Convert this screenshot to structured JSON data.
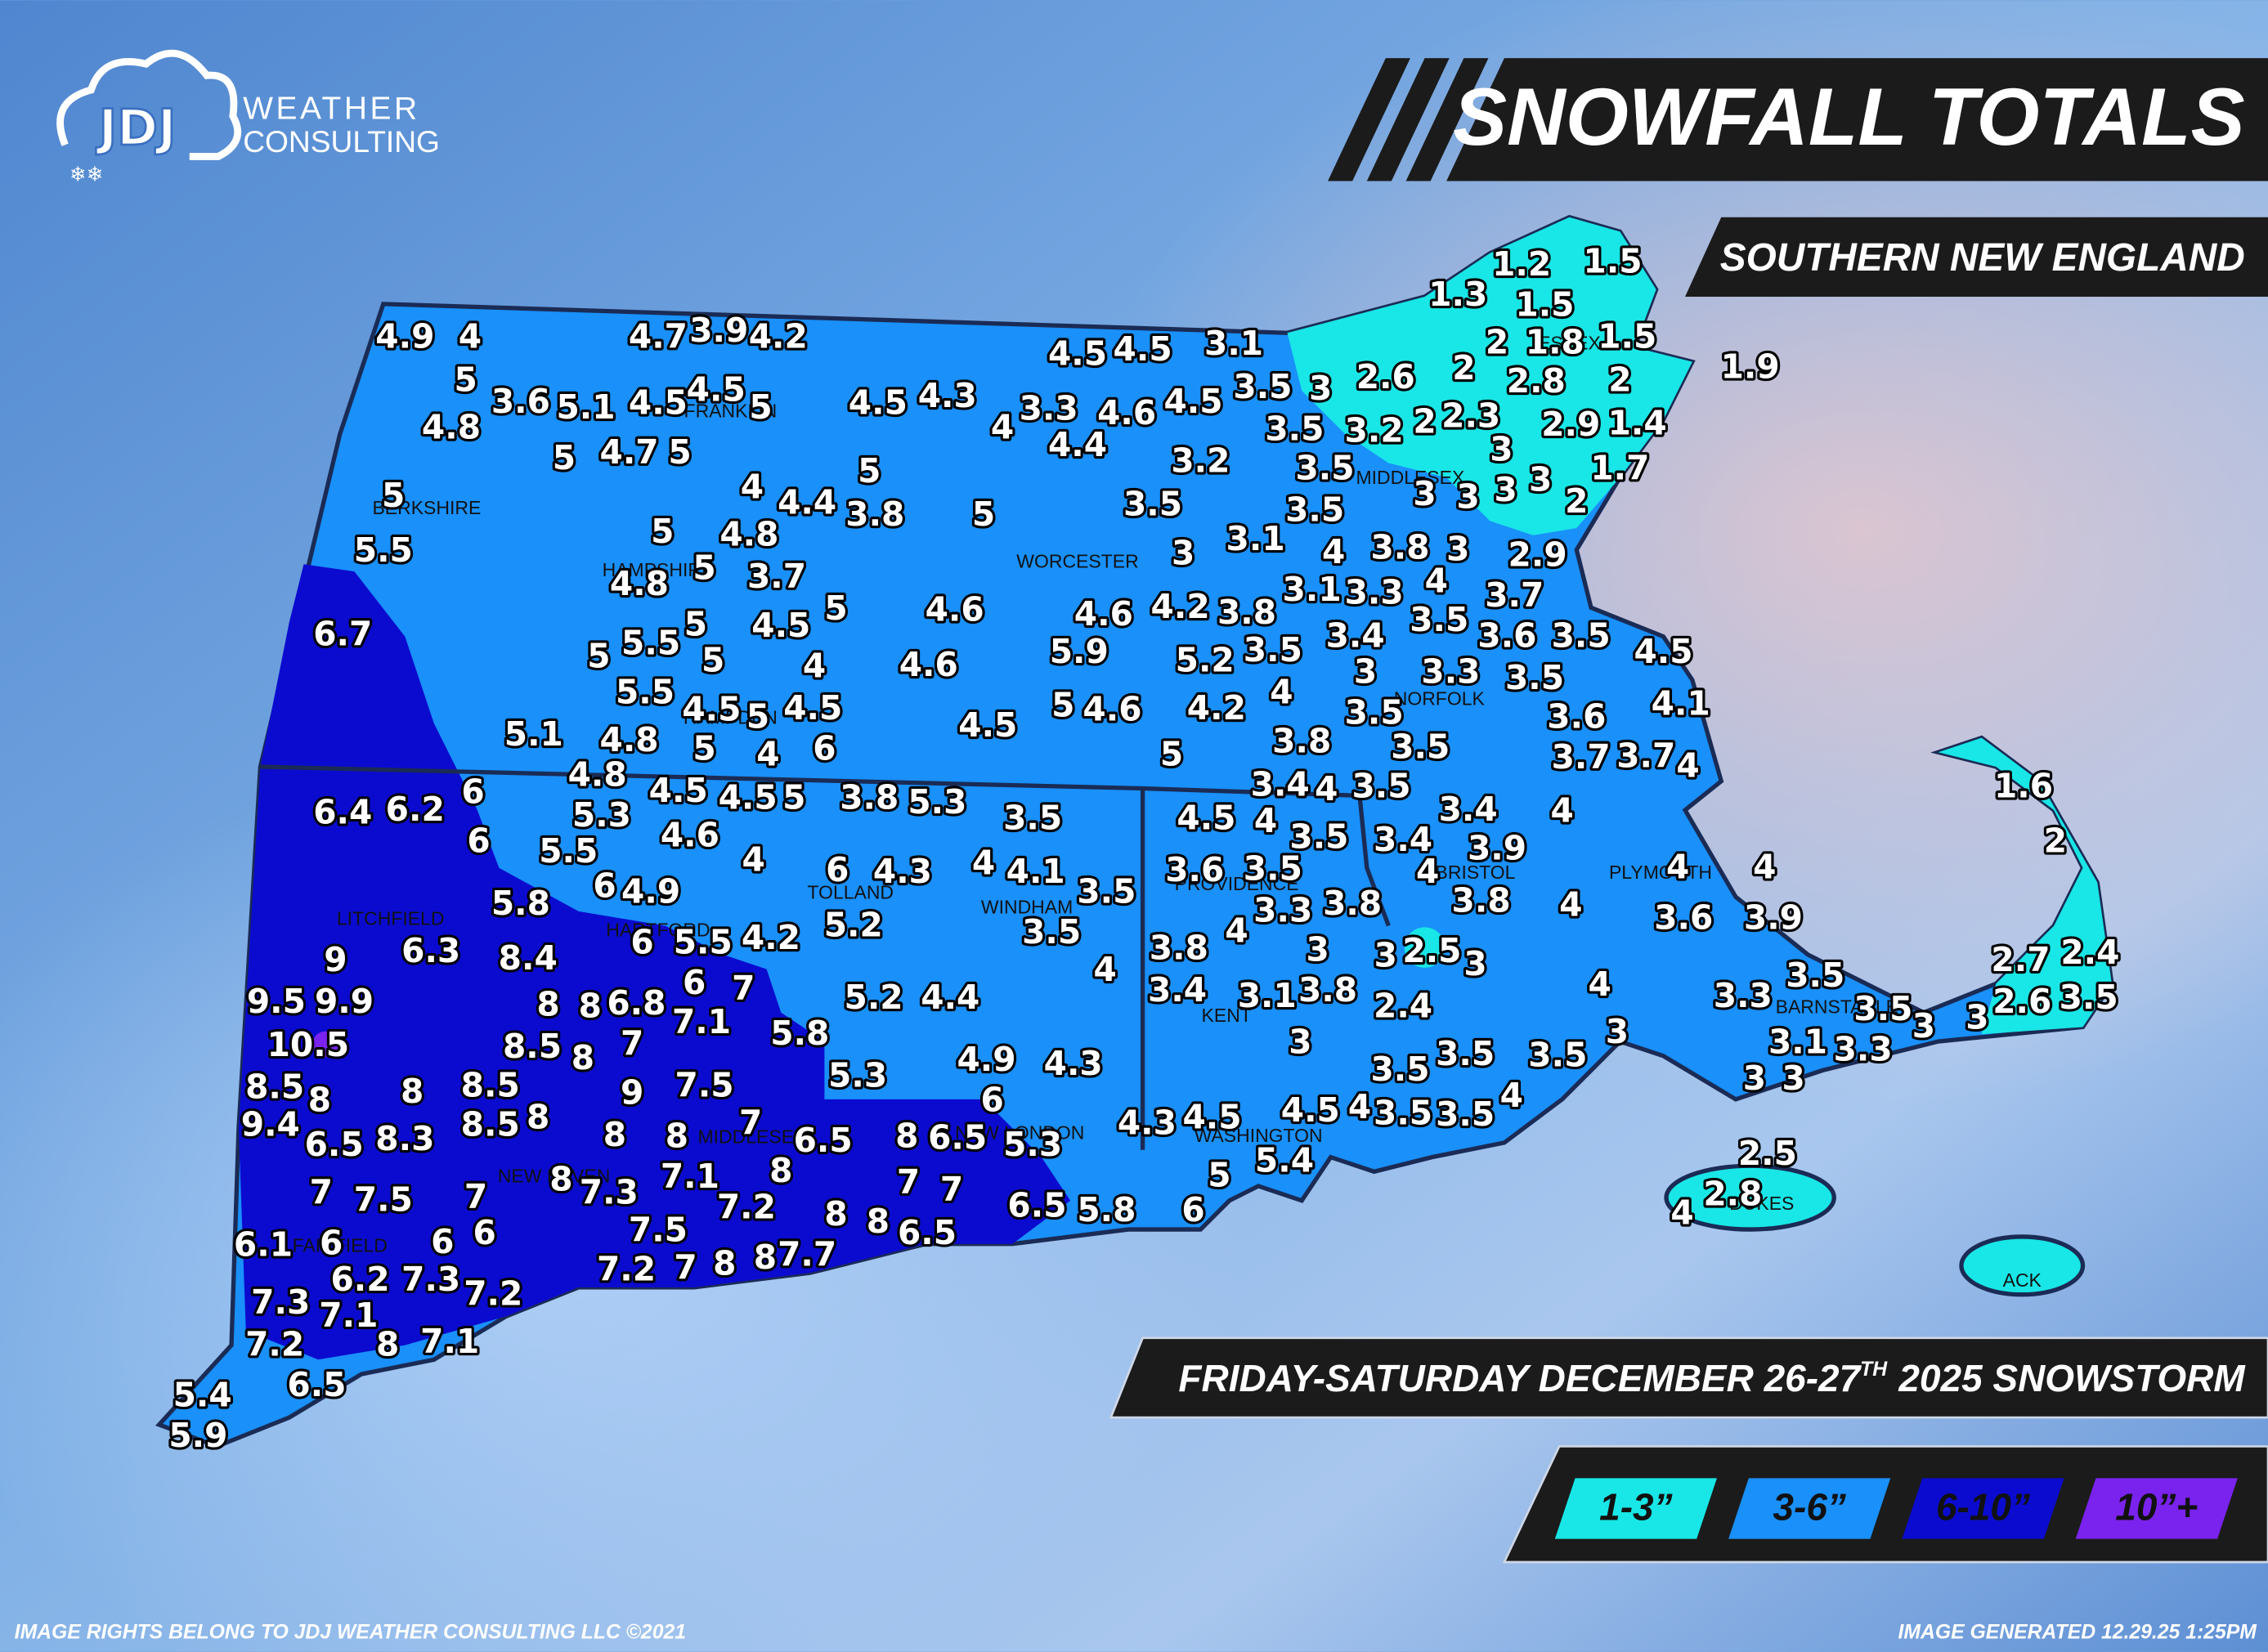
{
  "logo": {
    "mark": "JDJ",
    "line1": "WEATHER",
    "line2": "CONSULTING"
  },
  "header": {
    "title": "SNOWFALL TOTALS",
    "region": "SOUTHERN NEW ENGLAND",
    "event": "FRIDAY-SATURDAY DECEMBER 26-27",
    "event_superscript": "TH",
    "event_end": "2025 SNOWSTORM"
  },
  "legend": [
    {
      "label": "1-3”",
      "color": "#19e6e6"
    },
    {
      "label": "3-6”",
      "color": "#1990fa"
    },
    {
      "label": "6-10”",
      "color": "#0b0bcf"
    },
    {
      "label": "10”+",
      "color": "#7a22ee"
    }
  ],
  "counties": [
    "BERKSHIRE",
    "FRANKLIN",
    "HAMPSHIRE",
    "HAMPDEN",
    "WORCESTER",
    "MIDDLESEX",
    "ESSEX",
    "NORFOLK",
    "BRISTOL",
    "PLYMOUTH",
    "BARNSTABLE",
    "DUKES",
    "ACK",
    "LITCHFIELD",
    "HARTFORD",
    "TOLLAND",
    "WINDHAM",
    "NEW HAVEN",
    "MIDDLESEX",
    "NEW LONDON",
    "FAIRFIELD",
    "PROVIDENCE",
    "KENT",
    "WASHINGTON"
  ],
  "snowfall_reports": [
    4.9,
    4,
    4.7,
    3.9,
    4.2,
    4.5,
    4.5,
    3.1,
    1.3,
    1.2,
    1.5,
    1.5,
    2,
    1.8,
    1.5,
    1.9,
    5,
    3.6,
    5.1,
    4.5,
    4.5,
    5,
    4.5,
    4.3,
    4,
    3.3,
    4.6,
    4.5,
    3.5,
    3,
    2.6,
    2,
    2.8,
    2,
    4.8,
    5,
    4.7,
    5,
    4.4,
    3.5,
    3.2,
    2,
    2.3,
    3,
    2.9,
    1.4,
    5,
    4,
    5,
    3.2,
    3.5,
    1.7,
    4.4,
    3.8,
    5,
    3.5,
    3.5,
    3,
    3,
    3,
    3,
    2,
    5.5,
    5,
    4.8,
    3,
    3.1,
    4,
    3.8,
    3,
    2.9,
    4.8,
    5,
    3.7,
    3.1,
    3.3,
    4,
    3.7,
    6.7,
    5,
    4.5,
    5,
    4.6,
    4.6,
    4.2,
    3.8,
    3.4,
    3.5,
    3.6,
    3.5,
    4.5,
    5,
    5.5,
    5,
    4,
    4.6,
    5.9,
    5.2,
    3.5,
    3,
    3.3,
    3.5,
    5.5,
    4.5,
    5,
    4.5,
    5,
    4.6,
    4.2,
    4,
    3.5,
    4.1,
    5.1,
    4.8,
    5,
    4,
    6,
    4.5,
    3.8,
    3.5,
    3.6,
    5,
    3.7,
    3.7,
    4,
    4.8,
    4.5,
    4.5,
    5,
    3.8,
    5.3,
    3.4,
    4,
    3.5,
    3.4,
    4,
    1.6,
    6.4,
    6.2,
    6,
    5.3,
    3.5,
    4.5,
    4,
    6,
    5.5,
    4.6,
    4,
    6,
    4.3,
    4,
    4.1,
    3.5,
    3.4,
    3.9,
    2,
    5.8,
    6,
    4.9,
    5.2,
    3.5,
    3.6,
    3.5,
    4,
    4,
    4,
    6.3,
    8.4,
    6,
    5.5,
    4.2,
    3.5,
    4,
    3.3,
    3.8,
    3.8,
    4,
    3.6,
    3.9,
    9,
    4,
    3.8,
    3,
    3,
    2.5,
    3,
    2.7,
    2.4,
    9.5,
    9.9,
    6,
    7,
    5.2,
    4.4,
    3.4,
    3.1,
    3.8,
    2.4,
    4,
    3.3,
    3.5,
    3.5,
    2.6,
    3.5,
    8,
    8,
    6.8,
    7.1,
    5.8,
    3,
    3,
    3,
    3,
    10.5,
    8.5,
    8,
    7,
    3.1,
    3.3,
    8.5,
    8,
    8,
    8.5,
    9,
    7.5,
    5.3,
    4.9,
    4.3,
    3.5,
    3.5,
    3.5,
    3,
    3,
    9.4,
    6.5,
    8.3,
    8.5,
    8,
    8,
    8,
    7,
    6.5,
    8,
    6.5,
    6,
    5.3,
    4.3,
    4.5,
    4.5,
    4,
    3.5,
    3.5,
    4,
    7,
    7.5,
    7,
    8,
    7.3,
    7.1,
    8,
    7,
    7,
    5.4,
    5,
    2.5,
    7.2,
    6,
    2.8,
    4,
    6.1,
    6,
    6,
    6,
    7.5,
    8,
    8,
    6.5,
    6.5,
    5.8,
    7.3,
    6.2,
    7.3,
    7.2,
    7.2,
    7,
    8,
    8,
    7.7,
    7.1,
    8,
    7.1,
    7.2,
    5.4,
    6.5,
    5.9
  ],
  "footer": {
    "rights": "IMAGE RIGHTS BELONG TO JDJ WEATHER CONSULTING LLC ©2021",
    "generated": "IMAGE GENERATED 12.29.25 1:25PM"
  }
}
